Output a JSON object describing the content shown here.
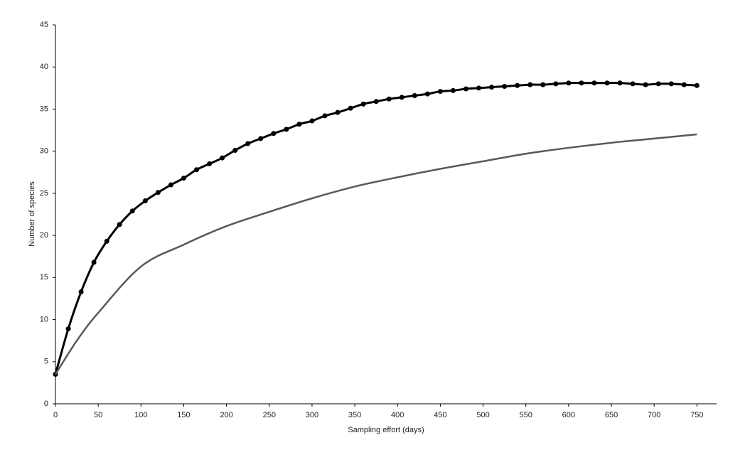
{
  "chart_data": {
    "type": "line",
    "xlabel": "Sampling effort (days)",
    "ylabel": "Number of species",
    "xlim": [
      0,
      773
    ],
    "xticks": [
      0,
      50,
      100,
      150,
      200,
      250,
      300,
      350,
      400,
      450,
      500,
      550,
      600,
      650,
      700,
      750
    ],
    "ylim": [
      0,
      45
    ],
    "yticks": [
      0,
      5,
      10,
      15,
      20,
      25,
      30,
      35,
      40,
      45
    ],
    "grid": false,
    "series": [
      {
        "color": "#000000",
        "markers": true,
        "x": [
          0,
          15,
          30,
          45,
          60,
          75,
          90,
          105,
          120,
          135,
          150,
          165,
          180,
          195,
          210,
          225,
          240,
          255,
          270,
          285,
          300,
          315,
          330,
          345,
          360,
          375,
          390,
          405,
          420,
          435,
          450,
          465,
          480,
          495,
          510,
          525,
          540,
          555,
          570,
          585,
          600,
          615,
          630,
          645,
          660,
          675,
          690,
          705,
          720,
          735,
          750
        ],
        "values": [
          3.5,
          8.9,
          13.3,
          16.8,
          19.3,
          21.3,
          22.9,
          24.1,
          25.1,
          26.0,
          26.8,
          27.8,
          28.5,
          29.2,
          30.1,
          30.9,
          31.5,
          32.1,
          32.6,
          33.2,
          33.6,
          34.2,
          34.6,
          35.1,
          35.6,
          35.9,
          36.2,
          36.4,
          36.6,
          36.8,
          37.1,
          37.2,
          37.4,
          37.5,
          37.6,
          37.7,
          37.8,
          37.9,
          37.9,
          38.0,
          38.1,
          38.1,
          38.1,
          38.1,
          38.1,
          38.0,
          37.9,
          38.0,
          38.0,
          37.9,
          37.8
        ]
      },
      {
        "color": "#595959",
        "markers": false,
        "x": [
          0,
          25,
          50,
          100,
          150,
          200,
          250,
          300,
          350,
          400,
          450,
          500,
          550,
          600,
          650,
          700,
          750
        ],
        "values": [
          3.5,
          7.5,
          10.8,
          16.3,
          18.9,
          21.1,
          22.8,
          24.4,
          25.8,
          26.9,
          27.9,
          28.8,
          29.7,
          30.4,
          31.0,
          31.5,
          32.0
        ]
      }
    ]
  }
}
